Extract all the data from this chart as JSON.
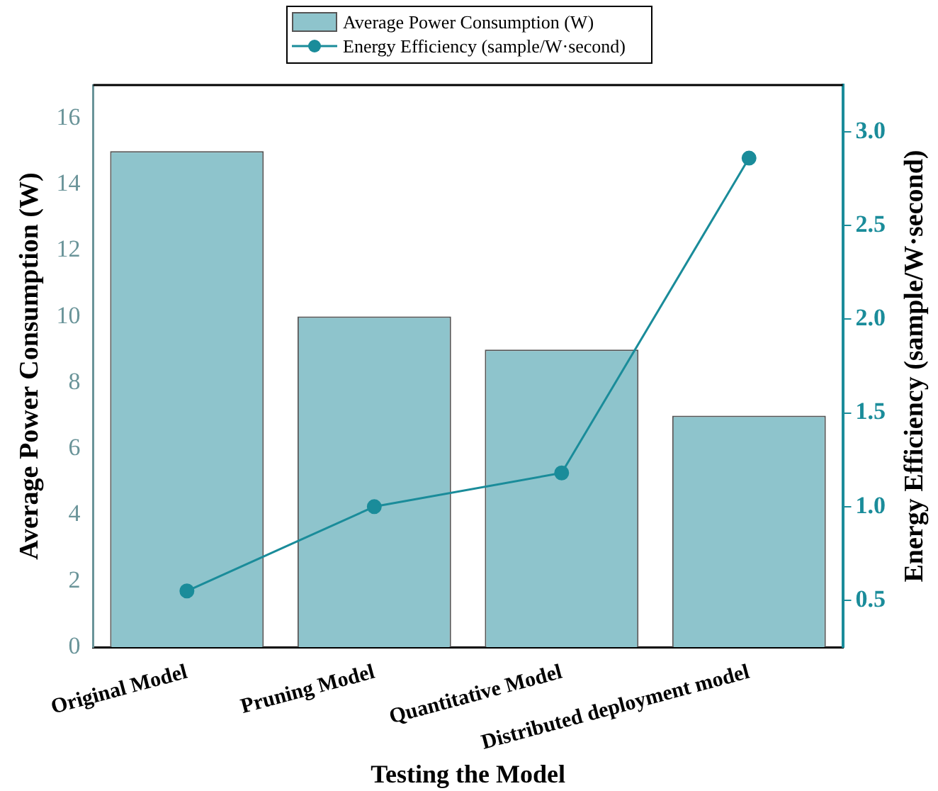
{
  "chart_data": {
    "type": "bar",
    "xlabel": "Testing the Model",
    "ylabel": "Average Power Consumption (W)",
    "y2label": "Energy Efficiency (sample/W·second)",
    "categories": [
      "Original Model",
      "Pruning Model",
      "Quantitative Model",
      "Distributed deployment model"
    ],
    "series": [
      {
        "name": "Average Power Consumption (W)",
        "color": "#8ec4cc",
        "values": [
          15,
          10,
          9,
          7
        ]
      },
      {
        "name": "Energy Efficiency (sample/W·second)",
        "type": "line",
        "axis": "y2",
        "color": "#1a8c9a",
        "values": [
          0.55,
          1.0,
          1.18,
          2.86
        ]
      }
    ],
    "ylim": [
      0,
      17
    ],
    "yticks": [
      0,
      2,
      4,
      6,
      8,
      10,
      12,
      14,
      16
    ],
    "y2lim": [
      0.25,
      3.25
    ],
    "y2ticks": [
      0.5,
      {
        "value": 1,
        "label": "1.0"
      },
      1.5,
      {
        "value": 2,
        "label": "2.0"
      },
      2.5,
      {
        "value": 3,
        "label": "3.0"
      }
    ],
    "grid": false,
    "legend": "top",
    "marker": "circle",
    "line_style": "solid"
  }
}
